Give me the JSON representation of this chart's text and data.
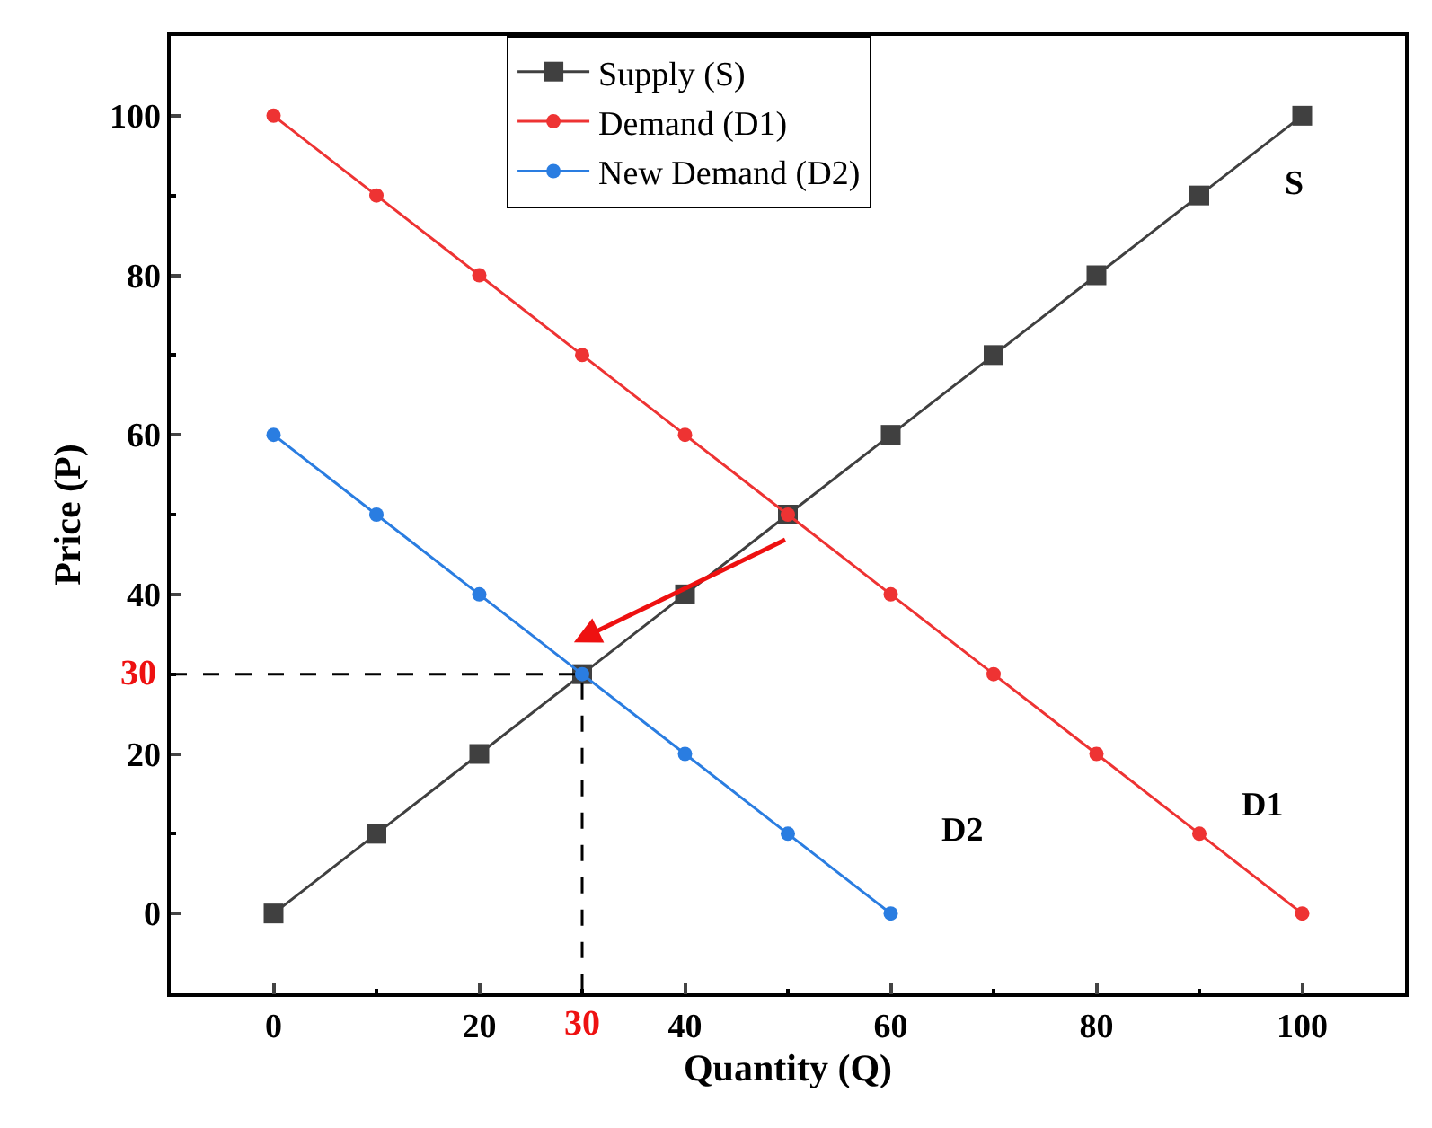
{
  "chart_data": {
    "type": "line",
    "xlabel": "Quantity (Q)",
    "ylabel": "Price (P)",
    "x": [
      0,
      10,
      20,
      30,
      40,
      50,
      60,
      70,
      80,
      90,
      100
    ],
    "series": [
      {
        "name": "Supply (S)",
        "color": "#404040",
        "marker": "square",
        "values": [
          0,
          10,
          20,
          30,
          40,
          50,
          60,
          70,
          80,
          90,
          100
        ]
      },
      {
        "name": "Demand (D1)",
        "color": "#ee3333",
        "marker": "circle",
        "values": [
          100,
          90,
          80,
          70,
          60,
          50,
          40,
          30,
          20,
          10,
          0
        ]
      },
      {
        "name": "New Demand (D2)",
        "color": "#2a7de1",
        "marker": "circle",
        "x": [
          0,
          10,
          20,
          30,
          40,
          50,
          60
        ],
        "values": [
          60,
          50,
          40,
          30,
          20,
          10,
          0
        ]
      },
      {
        "color": "#000000",
        "marker": "none",
        "line_style": "dashed",
        "x": [
          -10,
          30,
          30
        ],
        "values": [
          30,
          30,
          -10
        ]
      }
    ],
    "xlim": [
      -10,
      110
    ],
    "ylim": [
      -10,
      110
    ],
    "xticks": [
      0,
      20,
      40,
      60,
      80,
      100
    ],
    "yticks": [
      0,
      20,
      40,
      60,
      80,
      100
    ],
    "annotations": [
      "S",
      "D1",
      "D2",
      {
        "text": "30",
        "x": 30,
        "y": -10
      },
      {
        "text": "30",
        "x": -10,
        "y": 30
      }
    ],
    "legend": "top"
  }
}
